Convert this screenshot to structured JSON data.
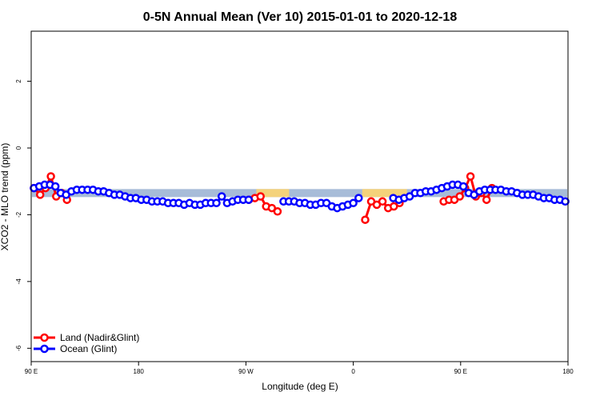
{
  "chart_data": {
    "type": "line",
    "title": "0-5N Annual Mean (Ver 10)   2015-01-01 to 2020-12-18",
    "xlabel": "Longitude (deg E)",
    "ylabel": "XCO2 - MLO trend (ppm)",
    "xlim": [
      90,
      450
    ],
    "ylim": [
      -6.4,
      3.5
    ],
    "x_ticks": [
      {
        "value": 90,
        "label": "90 E"
      },
      {
        "value": 162,
        "label": "180"
      },
      {
        "value": 234,
        "label": "90 W"
      },
      {
        "value": 306,
        "label": "0"
      },
      {
        "value": 378,
        "label": "90 E"
      },
      {
        "value": 450,
        "label": "180"
      }
    ],
    "y_ticks": [
      {
        "value": -6,
        "label": "-6"
      },
      {
        "value": -4,
        "label": "-4"
      },
      {
        "value": -2,
        "label": "-2"
      },
      {
        "value": 0,
        "label": "0"
      },
      {
        "value": 2,
        "label": "2"
      }
    ],
    "grid": false,
    "legend_position": "bottom-left",
    "band": {
      "y_center": -1.35,
      "y_half_width": 0.12,
      "base_color": "#a7bcd8",
      "land_color": "#f4d27a",
      "land_ranges": [
        [
          241,
          263
        ],
        [
          312,
          342
        ]
      ]
    },
    "series": [
      {
        "name": "Land (Nadir&Glint)",
        "color": "#ff0000",
        "x": [
          91.8,
          96,
          99.6,
          103.2,
          106.8,
          110.4,
          114,
          236,
          240,
          243.8,
          247.6,
          251.4,
          255.2,
          314,
          318,
          321.8,
          325.6,
          329.4,
          333.2,
          337,
          366.6,
          370.2,
          373.8,
          377.4,
          381,
          384.6,
          388.2,
          391.8,
          395.4,
          399
        ],
        "y": [
          -1.2,
          -1.4,
          -1.2,
          -0.85,
          -1.45,
          -1.35,
          -1.55,
          -1.55,
          -1.5,
          -1.45,
          -1.75,
          -1.8,
          -1.9,
          -2.15,
          -1.6,
          -1.7,
          -1.6,
          -1.8,
          -1.75,
          -1.65,
          -1.6,
          -1.55,
          -1.55,
          -1.45,
          -1.2,
          -0.85,
          -1.45,
          -1.35,
          -1.55,
          -1.2
        ]
      },
      {
        "name": "Ocean (Glint)",
        "color": "#0000ff",
        "x": [
          91.8,
          95.4,
          99,
          102.6,
          106.2,
          109.8,
          113.4,
          117,
          120.6,
          124.2,
          127.8,
          131.4,
          135,
          138.6,
          142.2,
          145.8,
          149.4,
          153,
          156.6,
          160.2,
          163.8,
          167.4,
          171,
          174.6,
          178.2,
          181.8,
          185.4,
          189,
          192.6,
          196.2,
          199.8,
          203.4,
          207,
          210.6,
          214.2,
          217.8,
          221.4,
          225,
          228.6,
          232.2,
          235.8,
          259.2,
          262.8,
          266.4,
          270,
          273.6,
          277.2,
          280.8,
          284.4,
          288,
          291.6,
          295.2,
          298.8,
          302.4,
          306,
          309.6,
          332.8,
          336.6,
          340.2,
          343.8,
          347.4,
          351,
          354.6,
          358.2,
          361.8,
          365.4,
          369,
          372.6,
          376.2,
          379.8,
          383.4,
          387,
          390.6,
          394.2,
          397.8,
          401.4,
          405,
          408.6,
          412.2,
          415.8,
          419.4,
          423,
          426.6,
          430.2,
          433.8,
          437.4,
          441,
          444.6,
          448.2
        ],
        "y": [
          -1.2,
          -1.15,
          -1.1,
          -1.1,
          -1.15,
          -1.35,
          -1.4,
          -1.3,
          -1.25,
          -1.25,
          -1.25,
          -1.25,
          -1.3,
          -1.3,
          -1.35,
          -1.4,
          -1.4,
          -1.45,
          -1.5,
          -1.5,
          -1.55,
          -1.55,
          -1.6,
          -1.6,
          -1.6,
          -1.65,
          -1.65,
          -1.65,
          -1.7,
          -1.65,
          -1.7,
          -1.7,
          -1.65,
          -1.65,
          -1.65,
          -1.45,
          -1.65,
          -1.6,
          -1.55,
          -1.55,
          -1.55,
          -1.6,
          -1.6,
          -1.6,
          -1.65,
          -1.65,
          -1.7,
          -1.7,
          -1.65,
          -1.65,
          -1.75,
          -1.8,
          -1.75,
          -1.7,
          -1.65,
          -1.5,
          -1.5,
          -1.55,
          -1.5,
          -1.45,
          -1.35,
          -1.35,
          -1.3,
          -1.3,
          -1.25,
          -1.2,
          -1.15,
          -1.1,
          -1.1,
          -1.15,
          -1.35,
          -1.4,
          -1.3,
          -1.25,
          -1.25,
          -1.25,
          -1.25,
          -1.3,
          -1.3,
          -1.35,
          -1.4,
          -1.4,
          -1.4,
          -1.45,
          -1.5,
          -1.5,
          -1.55,
          -1.55,
          -1.6
        ]
      }
    ]
  }
}
